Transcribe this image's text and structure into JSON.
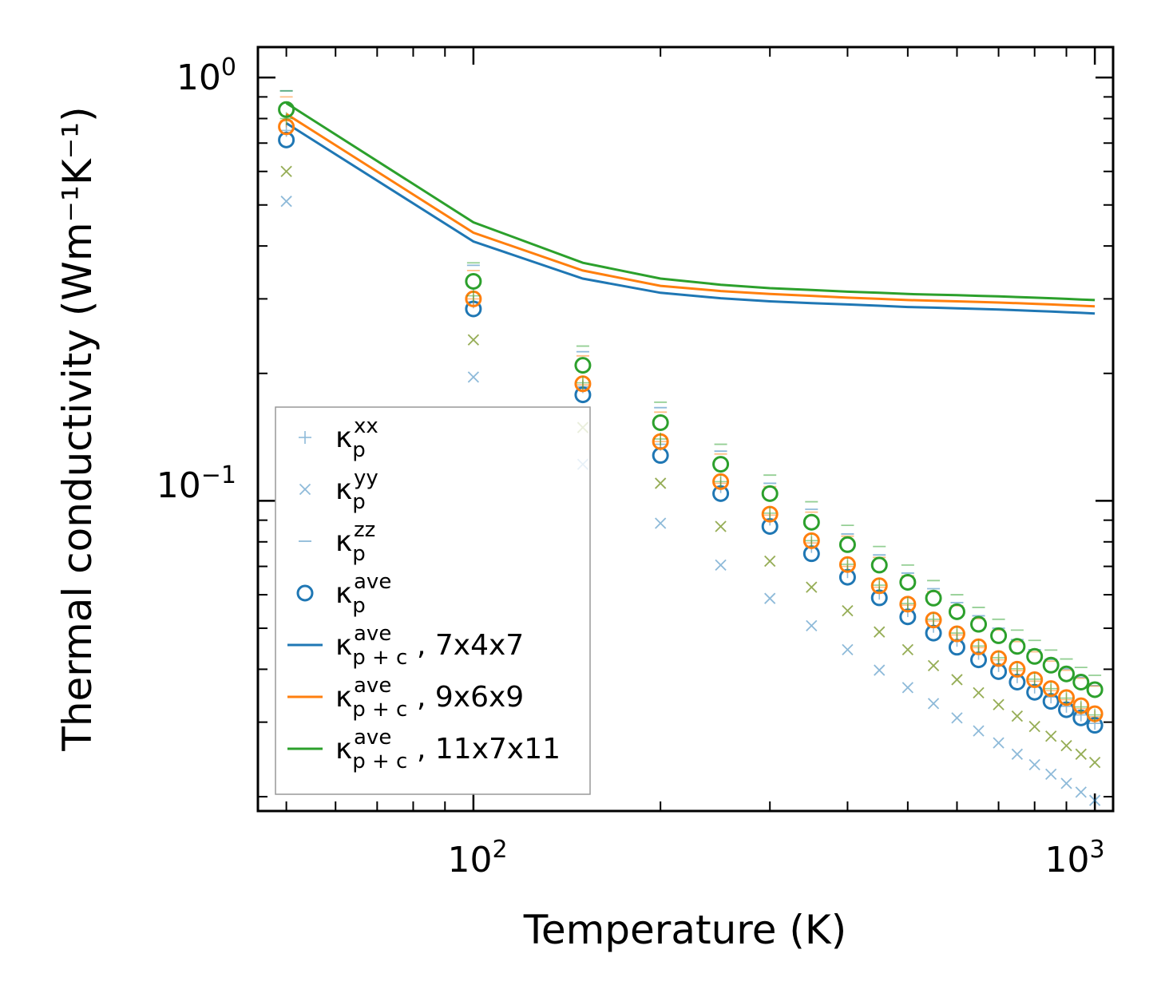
{
  "chart_data": {
    "type": "line",
    "title": "",
    "xlabel": "Temperature (K)",
    "ylabel": "Thermal conductivity (Wm⁻¹K⁻¹)",
    "xscale": "log",
    "yscale": "log",
    "xlim": [
      45,
      1070
    ],
    "ylim": [
      0.0185,
      1.18
    ],
    "x_ticks": [
      {
        "base": "10",
        "exp": "2"
      },
      {
        "base": "10",
        "exp": "3"
      }
    ],
    "y_ticks": [
      {
        "base": "10",
        "exp": "−1"
      },
      {
        "base": "10",
        "exp": "0"
      }
    ],
    "legend_position": "lower-left",
    "legend": [
      {
        "base": "κ",
        "sub": "p",
        "sup": "xx",
        "suffix": ""
      },
      {
        "base": "κ",
        "sub": "p",
        "sup": "yy",
        "suffix": ""
      },
      {
        "base": "κ",
        "sub": "p",
        "sup": "zz",
        "suffix": ""
      },
      {
        "base": "κ",
        "sub": "p",
        "sup": "ave",
        "suffix": ""
      },
      {
        "base": "κ",
        "sub": "p + c",
        "sup": "ave",
        "suffix": ", 7x4x7"
      },
      {
        "base": "κ",
        "sub": "p + c",
        "sup": "ave",
        "suffix": ", 9x6x9"
      },
      {
        "base": "κ",
        "sub": "p + c",
        "sup": "ave",
        "suffix": ", 11x7x11"
      }
    ],
    "x": [
      50,
      100,
      150,
      200,
      250,
      300,
      350,
      400,
      450,
      500,
      550,
      600,
      650,
      700,
      750,
      800,
      850,
      900,
      950,
      1000
    ],
    "series": [
      {
        "name": "7x4x7",
        "color": "#1f77b4",
        "kxx": [
          0.75,
          0.295,
          0.186,
          0.136,
          0.108,
          0.0905,
          0.078,
          0.068,
          0.0605,
          0.055,
          0.0505,
          0.0468,
          0.0436,
          0.0408,
          0.0384,
          0.0363,
          0.0344,
          0.0327,
          0.0312,
          0.0298
        ],
        "kyy": [
          0.51,
          0.196,
          0.122,
          0.0885,
          0.0705,
          0.0588,
          0.0507,
          0.0445,
          0.0398,
          0.0362,
          0.0332,
          0.0307,
          0.0286,
          0.0268,
          0.0252,
          0.0238,
          0.0226,
          0.0215,
          0.0205,
          0.0196
        ],
        "kzz": [
          0.93,
          0.36,
          0.225,
          0.166,
          0.131,
          0.11,
          0.0955,
          0.0835,
          0.0745,
          0.0675,
          0.062,
          0.0575,
          0.0535,
          0.05,
          0.047,
          0.0445,
          0.0422,
          0.0401,
          0.0383,
          0.0366
        ],
        "kave": [
          0.712,
          0.284,
          0.178,
          0.128,
          0.104,
          0.087,
          0.075,
          0.066,
          0.059,
          0.0532,
          0.0487,
          0.0451,
          0.0421,
          0.0395,
          0.0373,
          0.0353,
          0.0336,
          0.0321,
          0.0307,
          0.0295
        ],
        "kpc": [
          0.78,
          0.41,
          0.335,
          0.31,
          0.301,
          0.296,
          0.293,
          0.291,
          0.289,
          0.287,
          0.286,
          0.285,
          0.284,
          0.283,
          0.282,
          0.281,
          0.28,
          0.279,
          0.278,
          0.277
        ]
      },
      {
        "name": "9x6x9",
        "color": "#ff7f0e",
        "kxx": [
          0.79,
          0.3,
          0.188,
          0.138,
          0.11,
          0.0925,
          0.0795,
          0.07,
          0.0625,
          0.0567,
          0.052,
          0.0482,
          0.045,
          0.0421,
          0.0397,
          0.0375,
          0.0356,
          0.0339,
          0.0323,
          0.0309
        ],
        "kyy": [
          0.6,
          0.24,
          0.149,
          0.11,
          0.087,
          0.072,
          0.0625,
          0.055,
          0.049,
          0.0445,
          0.0408,
          0.0378,
          0.0352,
          0.033,
          0.031,
          0.0293,
          0.0278,
          0.0264,
          0.0252,
          0.0241
        ],
        "kzz": [
          0.9,
          0.35,
          0.22,
          0.162,
          0.129,
          0.108,
          0.094,
          0.0825,
          0.0735,
          0.0665,
          0.061,
          0.0565,
          0.0527,
          0.0495,
          0.0465,
          0.044,
          0.0418,
          0.0398,
          0.0381,
          0.0365
        ],
        "kave": [
          0.765,
          0.3,
          0.189,
          0.138,
          0.111,
          0.093,
          0.0805,
          0.0707,
          0.063,
          0.057,
          0.0523,
          0.0485,
          0.0452,
          0.0424,
          0.04,
          0.0378,
          0.036,
          0.0343,
          0.0328,
          0.0314
        ],
        "kpc": [
          0.82,
          0.43,
          0.35,
          0.322,
          0.313,
          0.308,
          0.305,
          0.302,
          0.3,
          0.298,
          0.297,
          0.296,
          0.295,
          0.294,
          0.293,
          0.292,
          0.291,
          0.29,
          0.289,
          0.288
        ]
      },
      {
        "name": "11x7x11",
        "color": "#2ca02c",
        "kxx": [
          0.8,
          0.305,
          0.19,
          0.14,
          0.111,
          0.0935,
          0.0805,
          0.0708,
          0.0632,
          0.0572,
          0.0525,
          0.0487,
          0.0454,
          0.0426,
          0.0401,
          0.0379,
          0.036,
          0.0342,
          0.0326,
          0.0312
        ],
        "kyy": [
          0.6,
          0.24,
          0.149,
          0.11,
          0.087,
          0.072,
          0.0625,
          0.055,
          0.049,
          0.0445,
          0.0408,
          0.0378,
          0.0352,
          0.033,
          0.031,
          0.0293,
          0.0278,
          0.0264,
          0.0252,
          0.0241
        ],
        "kzz": [
          0.93,
          0.365,
          0.232,
          0.171,
          0.136,
          0.115,
          0.0995,
          0.0875,
          0.078,
          0.0705,
          0.0648,
          0.06,
          0.056,
          0.0525,
          0.0495,
          0.0468,
          0.0444,
          0.0423,
          0.0404,
          0.0387
        ],
        "kave": [
          0.84,
          0.33,
          0.209,
          0.153,
          0.122,
          0.104,
          0.089,
          0.0788,
          0.0705,
          0.0642,
          0.0589,
          0.0547,
          0.0511,
          0.048,
          0.0453,
          0.0429,
          0.0409,
          0.039,
          0.0373,
          0.0358
        ],
        "kpc": [
          0.87,
          0.455,
          0.365,
          0.335,
          0.324,
          0.318,
          0.315,
          0.312,
          0.31,
          0.308,
          0.307,
          0.306,
          0.305,
          0.304,
          0.303,
          0.302,
          0.301,
          0.3,
          0.299,
          0.298
        ]
      }
    ]
  }
}
